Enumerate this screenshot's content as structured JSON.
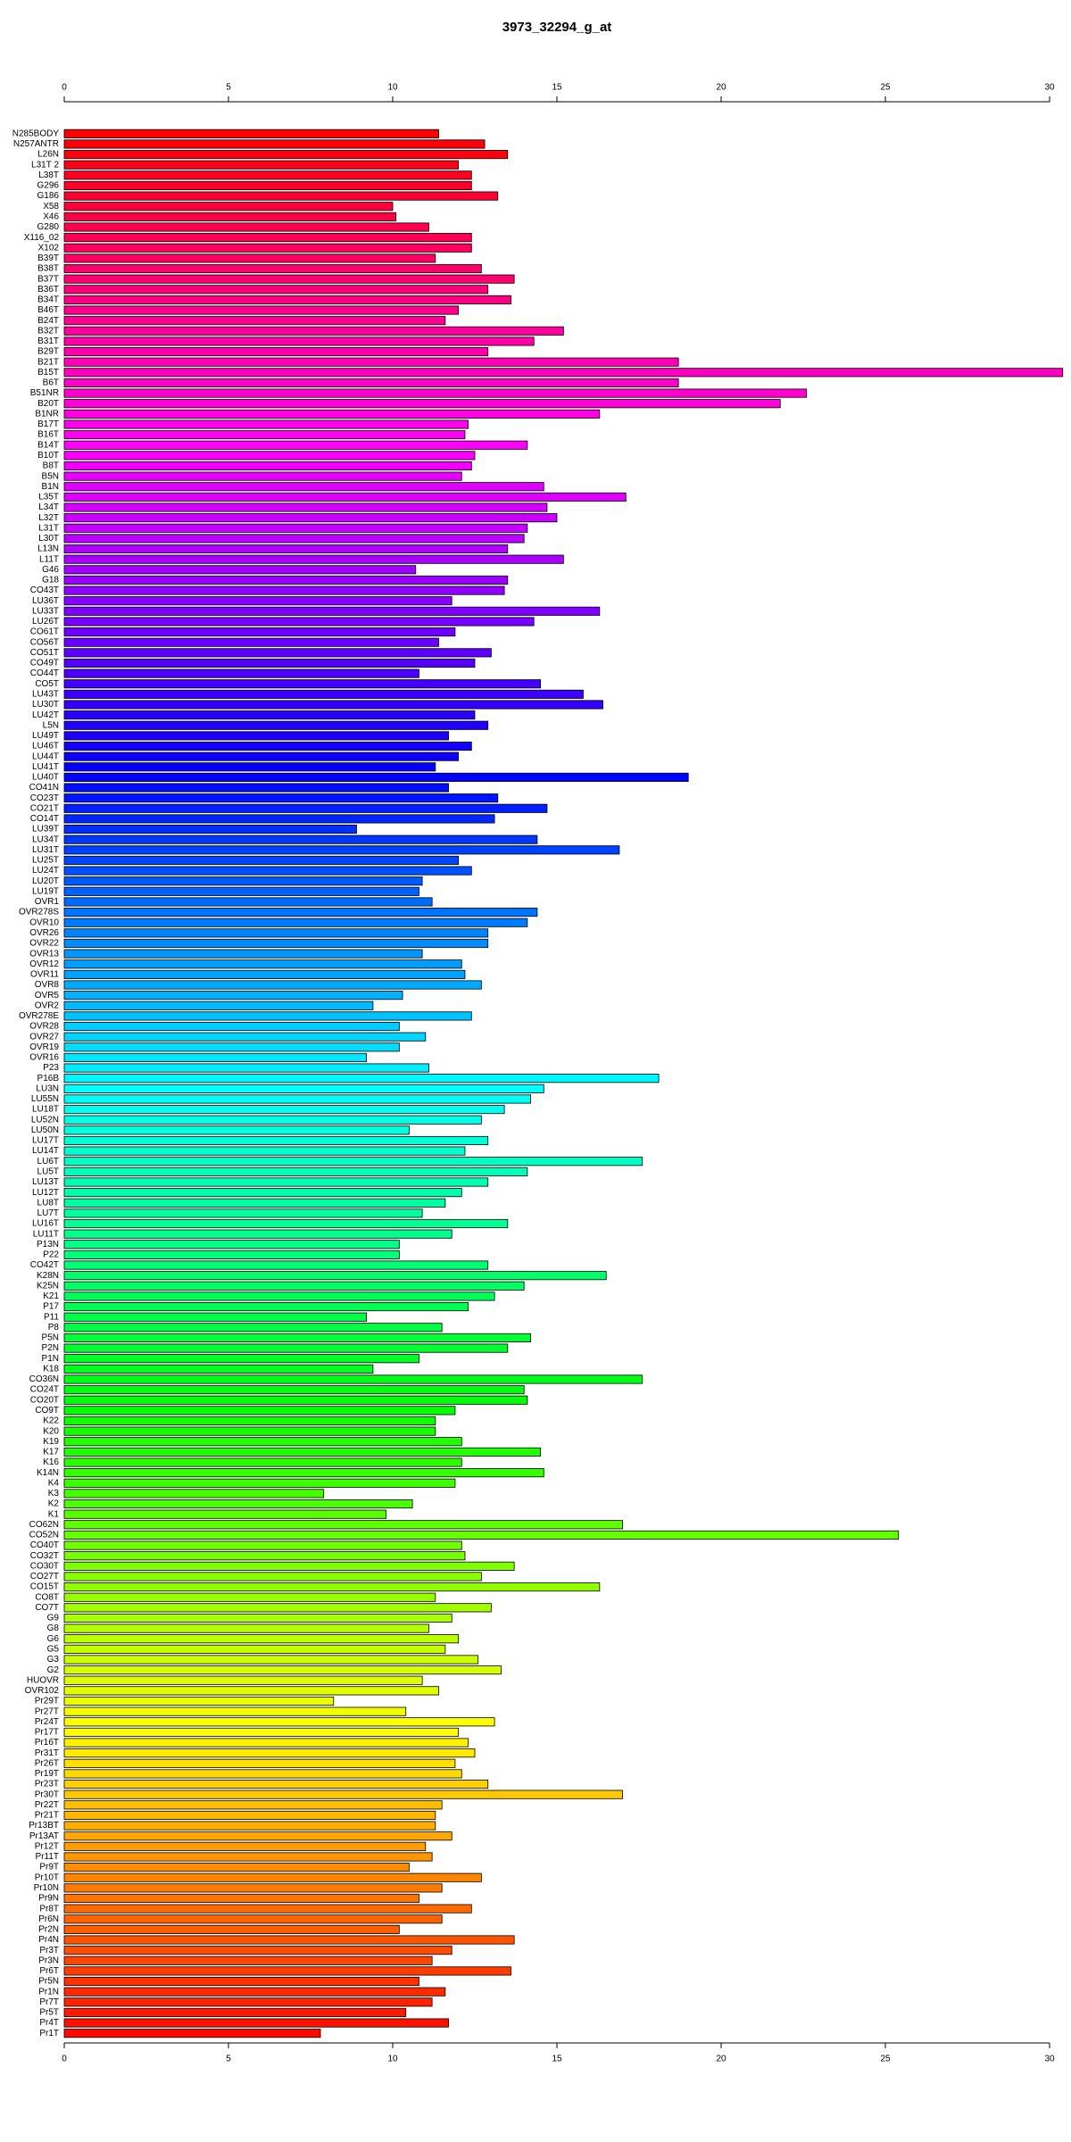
{
  "chart_data": {
    "type": "barh",
    "title": "3973_32294_g_at",
    "categories": [
      "N285BODY",
      "N257ANTR",
      "L26N",
      "L31T 2",
      "L38T",
      "G296",
      "G186",
      "X58",
      "X46",
      "G280",
      "X116_02",
      "X102",
      "B39T",
      "B38T",
      "B37T",
      "B36T",
      "B34T",
      "B46T",
      "B24T",
      "B32T",
      "B31T",
      "B29T",
      "B21T",
      "B15T",
      "B6T",
      "B51NR",
      "B20T",
      "B1NR",
      "B17T",
      "B16T",
      "B14T",
      "B10T",
      "B8T",
      "B5N",
      "B1N",
      "L35T",
      "L34T",
      "L32T",
      "L31T",
      "L30T",
      "L13N",
      "L11T",
      "G46",
      "G18",
      "CO43T",
      "LU36T",
      "LU33T",
      "LU26T",
      "CO61T",
      "CO56T",
      "CO51T",
      "CO49T",
      "CO44T",
      "CO5T",
      "LU43T",
      "LU30T",
      "LU42T",
      "L5N",
      "LU49T",
      "LU46T",
      "LU44T",
      "LU41T",
      "LU40T",
      "CO41N",
      "CO23T",
      "CO21T",
      "CO14T",
      "LU39T",
      "LU34T",
      "LU31T",
      "LU25T",
      "LU24T",
      "LU20T",
      "LU19T",
      "OVR1",
      "OVR278S",
      "OVR10",
      "OVR26",
      "OVR22",
      "OVR13",
      "OVR12",
      "OVR11",
      "OVR8",
      "OVR5",
      "OVR2",
      "OVR278E",
      "OVR28",
      "OVR27",
      "OVR19",
      "OVR16",
      "P23",
      "P16B",
      "LU3N",
      "LU55N",
      "LU18T",
      "LU52N",
      "LU50N",
      "LU17T",
      "LU14T",
      "LU6T",
      "LU5T",
      "LU13T",
      "LU12T",
      "LU8T",
      "LU7T",
      "LU16T",
      "LU11T",
      "P13N",
      "P22",
      "CO42T",
      "K28N",
      "K25N",
      "K21",
      "P17",
      "P11",
      "P8",
      "P5N",
      "P2N",
      "P1N",
      "K18",
      "CO36N",
      "CO24T",
      "CO20T",
      "CO9T",
      "K22",
      "K20",
      "K19",
      "K17",
      "K16",
      "K14N",
      "K4",
      "K3",
      "K2",
      "K1",
      "CO62N",
      "CO52N",
      "CO40T",
      "CO32T",
      "CO30T",
      "CO27T",
      "CO15T",
      "CO8T",
      "CO7T",
      "G9",
      "G8",
      "G6",
      "G5",
      "G3",
      "G2",
      "HUOVR",
      "OVR102",
      "Pr29T",
      "Pr27T",
      "Pr24T",
      "Pr17T",
      "Pr16T",
      "Pr31T",
      "Pr26T",
      "Pr19T",
      "Pr23T",
      "Pr30T",
      "Pr22T",
      "Pr21T",
      "Pr13BT",
      "Pr13AT",
      "Pr12T",
      "Pr11T",
      "Pr9T",
      "Pr10T",
      "Pr10N",
      "Pr9N",
      "Pr8T",
      "Pr6N",
      "Pr2N",
      "Pr4N",
      "Pr3T",
      "Pr3N",
      "Pr6T",
      "Pr5N",
      "Pr1N",
      "Pr7T",
      "Pr5T",
      "Pr4T",
      "Pr1T"
    ],
    "values": [
      11.4,
      12.8,
      13.5,
      12.0,
      12.4,
      12.4,
      13.2,
      10.0,
      10.1,
      11.1,
      12.4,
      12.4,
      11.3,
      12.7,
      13.7,
      12.9,
      13.6,
      12.0,
      11.6,
      15.2,
      14.3,
      12.9,
      18.7,
      30.4,
      18.7,
      22.6,
      21.8,
      16.3,
      12.3,
      12.2,
      14.1,
      12.5,
      12.4,
      12.1,
      14.6,
      17.1,
      14.7,
      15.0,
      14.1,
      14.0,
      13.5,
      15.2,
      10.7,
      13.5,
      13.4,
      11.8,
      16.3,
      14.3,
      11.9,
      11.4,
      13.0,
      12.5,
      10.8,
      14.5,
      15.8,
      16.4,
      12.5,
      12.9,
      11.7,
      12.4,
      12.0,
      11.3,
      19.0,
      11.7,
      13.2,
      14.7,
      13.1,
      8.9,
      14.4,
      16.9,
      12.0,
      12.4,
      10.9,
      10.8,
      11.2,
      14.4,
      14.1,
      12.9,
      12.9,
      10.9,
      12.1,
      12.2,
      12.7,
      10.3,
      9.4,
      12.4,
      10.2,
      11.0,
      10.2,
      9.2,
      11.1,
      18.1,
      14.6,
      14.2,
      13.4,
      12.7,
      10.5,
      12.9,
      12.2,
      17.6,
      14.1,
      12.9,
      12.1,
      11.6,
      10.9,
      13.5,
      11.8,
      10.2,
      10.2,
      12.9,
      16.5,
      14.0,
      13.1,
      12.3,
      9.2,
      11.5,
      14.2,
      13.5,
      10.8,
      9.4,
      17.6,
      14.0,
      14.1,
      11.9,
      11.3,
      11.3,
      12.1,
      14.5,
      12.1,
      14.6,
      11.9,
      7.9,
      10.6,
      9.8,
      17.0,
      25.4,
      12.1,
      12.2,
      13.7,
      12.7,
      16.3,
      11.3,
      13.0,
      11.8,
      11.1,
      12.0,
      11.6,
      12.6,
      13.3,
      10.9,
      11.4,
      8.2,
      10.4,
      13.1,
      12.0,
      12.3,
      12.5,
      11.9,
      12.1,
      12.9,
      17.0,
      11.5,
      11.3,
      11.3,
      11.8,
      11.0,
      11.2,
      10.5,
      12.7,
      11.5,
      10.8,
      12.4,
      11.5,
      10.2,
      13.7,
      11.8,
      11.2,
      13.6,
      10.8,
      11.6,
      11.2,
      10.4,
      11.7,
      7.8
    ],
    "colors": [
      "hsl(360,100%,50%)",
      "hsl(358,100%,50%)",
      "hsl(356,100%,50%)",
      "hsl(354,100%,50%)",
      "hsl(352,100%,50%)",
      "hsl(350,100%,50%)",
      "hsl(348,100%,50%)",
      "hsl(346,100%,50%)",
      "hsl(344,100%,50%)",
      "hsl(342,100%,50%)",
      "hsl(340,100%,50%)",
      "hsl(338,100%,50%)",
      "hsl(337,100%,50%)",
      "hsl(335,100%,50%)",
      "hsl(333,100%,50%)",
      "hsl(331,100%,50%)",
      "hsl(329,100%,50%)",
      "hsl(327,100%,50%)",
      "hsl(325,100%,50%)",
      "hsl(323,100%,50%)",
      "hsl(321,100%,50%)",
      "hsl(319,100%,50%)",
      "hsl(317,100%,50%)",
      "hsl(315,100%,50%)",
      "hsl(313,100%,50%)",
      "hsl(311,100%,50%)",
      "hsl(309,100%,50%)",
      "hsl(307,100%,50%)",
      "hsl(305,100%,50%)",
      "hsl(303,100%,50%)",
      "hsl(301,100%,50%)",
      "hsl(299,100%,50%)",
      "hsl(297,100%,50%)",
      "hsl(295,100%,50%)",
      "hsl(293,100%,50%)",
      "hsl(292,100%,50%)",
      "hsl(290,100%,50%)",
      "hsl(288,100%,50%)",
      "hsl(286,100%,50%)",
      "hsl(284,100%,50%)",
      "hsl(282,100%,50%)",
      "hsl(280,100%,50%)",
      "hsl(278,100%,50%)",
      "hsl(276,100%,50%)",
      "hsl(274,100%,50%)",
      "hsl(272,100%,50%)",
      "hsl(270,100%,50%)",
      "hsl(268,100%,50%)",
      "hsl(266,100%,50%)",
      "hsl(264,100%,50%)",
      "hsl(262,100%,50%)",
      "hsl(260,100%,50%)",
      "hsl(258,100%,50%)",
      "hsl(256,100%,50%)",
      "hsl(254,100%,50%)",
      "hsl(252,100%,50%)",
      "hsl(250,100%,50%)",
      "hsl(248,100%,50%)",
      "hsl(247,100%,50%)",
      "hsl(245,100%,50%)",
      "hsl(243,100%,50%)",
      "hsl(241,100%,50%)",
      "hsl(239,100%,50%)",
      "hsl(237,100%,50%)",
      "hsl(235,100%,50%)",
      "hsl(233,100%,50%)",
      "hsl(231,100%,50%)",
      "hsl(229,100%,50%)",
      "hsl(227,100%,50%)",
      "hsl(225,100%,50%)",
      "hsl(223,100%,50%)",
      "hsl(221,100%,50%)",
      "hsl(219,100%,50%)",
      "hsl(217,100%,50%)",
      "hsl(215,100%,50%)",
      "hsl(213,100%,50%)",
      "hsl(211,100%,50%)",
      "hsl(209,100%,50%)",
      "hsl(207,100%,50%)",
      "hsl(205,100%,50%)",
      "hsl(203,100%,50%)",
      "hsl(202,100%,50%)",
      "hsl(200,100%,50%)",
      "hsl(198,100%,50%)",
      "hsl(196,100%,50%)",
      "hsl(194,100%,50%)",
      "hsl(192,100%,50%)",
      "hsl(190,100%,50%)",
      "hsl(188,100%,50%)",
      "hsl(186,100%,50%)",
      "hsl(184,100%,50%)",
      "hsl(182,100%,50%)",
      "hsl(180,100%,50%)",
      "hsl(178,100%,50%)",
      "hsl(176,100%,50%)",
      "hsl(174,100%,50%)",
      "hsl(172,100%,50%)",
      "hsl(170,100%,50%)",
      "hsl(168,100%,50%)",
      "hsl(166,100%,50%)",
      "hsl(164,100%,50%)",
      "hsl(162,100%,50%)",
      "hsl(160,100%,50%)",
      "hsl(158,100%,50%)",
      "hsl(157,100%,50%)",
      "hsl(155,100%,50%)",
      "hsl(153,100%,50%)",
      "hsl(151,100%,50%)",
      "hsl(149,100%,50%)",
      "hsl(147,100%,50%)",
      "hsl(145,100%,50%)",
      "hsl(143,100%,50%)",
      "hsl(141,100%,50%)",
      "hsl(139,100%,50%)",
      "hsl(137,100%,50%)",
      "hsl(135,100%,50%)",
      "hsl(133,100%,50%)",
      "hsl(131,100%,50%)",
      "hsl(129,100%,50%)",
      "hsl(127,100%,50%)",
      "hsl(125,100%,50%)",
      "hsl(123,100%,50%)",
      "hsl(121,100%,50%)",
      "hsl(119,100%,50%)",
      "hsl(117,100%,50%)",
      "hsl(115,100%,50%)",
      "hsl(113,100%,50%)",
      "hsl(112,100%,50%)",
      "hsl(110,100%,50%)",
      "hsl(108,100%,50%)",
      "hsl(106,100%,50%)",
      "hsl(104,100%,50%)",
      "hsl(102,100%,50%)",
      "hsl(100,100%,50%)",
      "hsl(98,100%,50%)",
      "hsl(96,100%,50%)",
      "hsl(94,100%,50%)",
      "hsl(92,100%,50%)",
      "hsl(90,100%,50%)",
      "hsl(88,100%,50%)",
      "hsl(86,100%,50%)",
      "hsl(84,100%,50%)",
      "hsl(82,100%,50%)",
      "hsl(80,100%,50%)",
      "hsl(78,100%,50%)",
      "hsl(76,100%,50%)",
      "hsl(74,100%,50%)",
      "hsl(72,100%,50%)",
      "hsl(70,100%,50%)",
      "hsl(68,100%,50%)",
      "hsl(67,100%,50%)",
      "hsl(65,100%,50%)",
      "hsl(63,100%,50%)",
      "hsl(61,100%,50%)",
      "hsl(59,100%,50%)",
      "hsl(57,100%,50%)",
      "hsl(55,100%,50%)",
      "hsl(53,100%,50%)",
      "hsl(51,100%,50%)",
      "hsl(49,100%,50%)",
      "hsl(47,100%,50%)",
      "hsl(45,100%,50%)",
      "hsl(43,100%,50%)",
      "hsl(41,100%,50%)",
      "hsl(39,100%,50%)",
      "hsl(37,100%,50%)",
      "hsl(35,100%,50%)",
      "hsl(33,100%,50%)",
      "hsl(31,100%,50%)",
      "hsl(29,100%,50%)",
      "hsl(27,100%,50%)",
      "hsl(25,100%,50%)",
      "hsl(23,100%,50%)",
      "hsl(22,100%,50%)",
      "hsl(20,100%,50%)",
      "hsl(18,100%,50%)",
      "hsl(16,100%,50%)",
      "hsl(14,100%,50%)",
      "hsl(12,100%,50%)",
      "hsl(10,100%,50%)",
      "hsl(8,100%,50%)",
      "hsl(6,100%,50%)",
      "hsl(4,100%,50%)",
      "hsl(2,100%,50%)"
    ],
    "xlim": [
      0,
      30
    ],
    "xticks": [
      0,
      5,
      10,
      15,
      20,
      25,
      30
    ]
  }
}
